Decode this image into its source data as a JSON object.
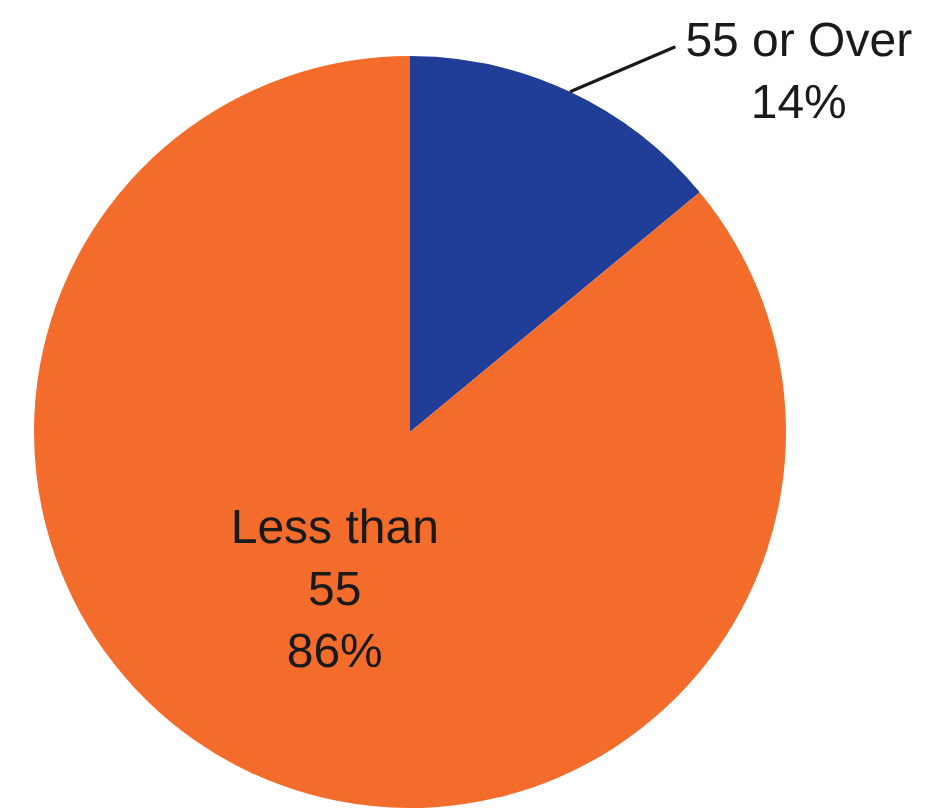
{
  "chart_data": {
    "type": "pie",
    "categories": [
      "55 or Over",
      "Less than 55"
    ],
    "values": [
      14,
      86
    ],
    "colors": [
      "#203e97",
      "#f46c2c"
    ],
    "value_labels": [
      "14%",
      "86%"
    ]
  }
}
